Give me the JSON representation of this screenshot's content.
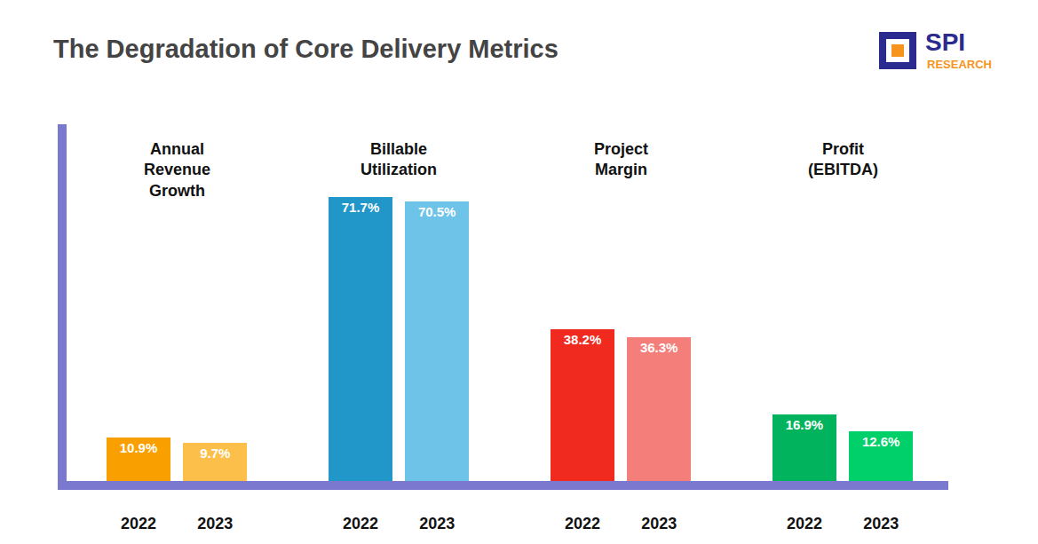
{
  "chart_data": {
    "type": "bar",
    "title": "The Degradation of Core Delivery Metrics",
    "logo": {
      "text": "SPI",
      "subtext": "RESEARCH"
    },
    "groups": [
      {
        "name": "Annual Revenue Growth",
        "categories": [
          "2022",
          "2023"
        ],
        "values": [
          10.9,
          9.7
        ],
        "value_labels": [
          "10.9%",
          "9.7%"
        ],
        "colors": [
          "#f9a000",
          "#fbbf4a"
        ]
      },
      {
        "name": "Billable Utilization",
        "categories": [
          "2022",
          "2023"
        ],
        "values": [
          71.7,
          70.5
        ],
        "value_labels": [
          "71.7%",
          "70.5%"
        ],
        "colors": [
          "#2196c9",
          "#6ec3e8"
        ]
      },
      {
        "name": "Project Margin",
        "categories": [
          "2022",
          "2023"
        ],
        "values": [
          38.2,
          36.3
        ],
        "value_labels": [
          "38.2%",
          "36.3%"
        ],
        "colors": [
          "#f02a1f",
          "#f47f7a"
        ]
      },
      {
        "name": "Profit (EBITDA)",
        "categories": [
          "2022",
          "2023"
        ],
        "values": [
          16.9,
          12.6
        ],
        "value_labels": [
          "16.9%",
          "12.6%"
        ],
        "colors": [
          "#00b35c",
          "#00d06a"
        ]
      }
    ],
    "ylim": [
      0,
      90
    ],
    "grid": false,
    "data_labels": true,
    "tick_labels": "x"
  }
}
